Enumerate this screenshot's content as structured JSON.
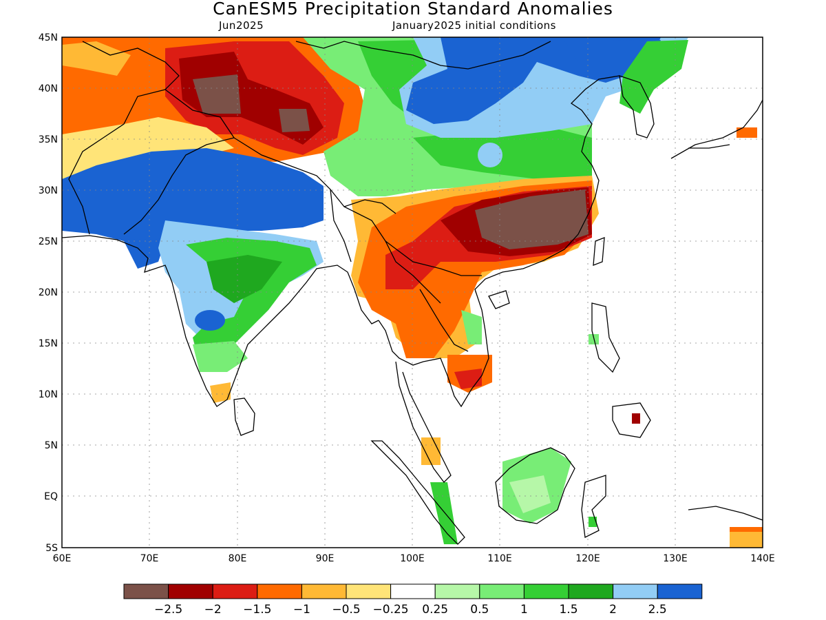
{
  "title": "CanESM5 Precipitation Standard Anomalies",
  "subtitle_left": "Jun2025",
  "subtitle_right": "January2025 initial conditions",
  "lat_labels": [
    "45N",
    "40N",
    "35N",
    "30N",
    "25N",
    "20N",
    "15N",
    "10N",
    "5N",
    "EQ",
    "5S"
  ],
  "lon_labels": [
    "60E",
    "70E",
    "80E",
    "90E",
    "100E",
    "110E",
    "120E",
    "130E",
    "140E"
  ],
  "colorbar": {
    "colors": [
      "#7b5148",
      "#a00000",
      "#dc1d14",
      "#ff6a00",
      "#ffb935",
      "#ffe478",
      "#ffffff",
      "#b6f7a8",
      "#78ed76",
      "#35cf35",
      "#1fa81f",
      "#92cdf5",
      "#1a63d2"
    ],
    "labels": [
      "-2.5",
      "-2",
      "-1.5",
      "-1",
      "-0.5",
      "-0.25",
      "0.25",
      "0.5",
      "1",
      "1.5",
      "2",
      "2.5"
    ]
  },
  "anomaly_regions": [
    {
      "name": "northwest-dry",
      "color": "#ff6a00"
    },
    {
      "name": "tibet-brown",
      "color": "#7b5148"
    },
    {
      "name": "south-china-brown",
      "color": "#7b5148"
    },
    {
      "name": "pakistan-wet",
      "color": "#1a63d2"
    },
    {
      "name": "north-china-wet",
      "color": "#1a63d2"
    }
  ]
}
